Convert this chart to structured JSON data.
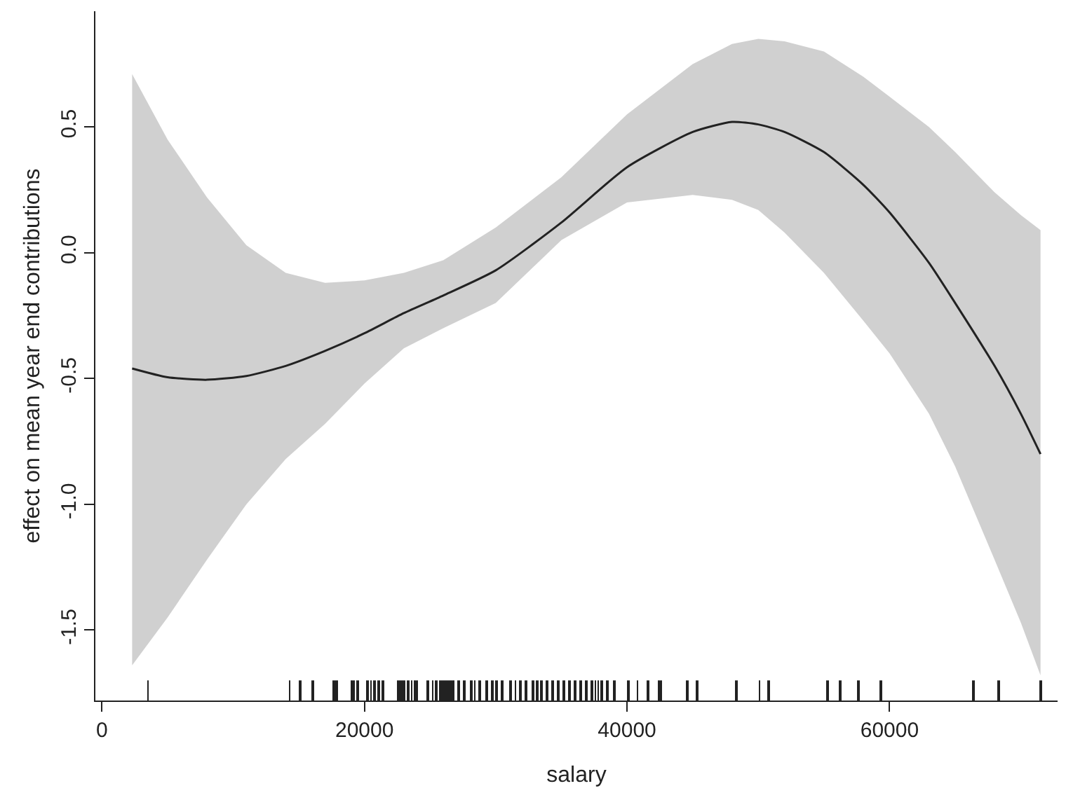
{
  "chart_data": {
    "type": "line",
    "xlabel": "salary",
    "ylabel": "effect on mean year end contributions",
    "xlim": [
      -500,
      72800
    ],
    "ylim": [
      -1.78,
      0.96
    ],
    "xticks": [
      0,
      20000,
      40000,
      60000
    ],
    "yticks": [
      {
        "value": -1.5,
        "label": "-1.5"
      },
      {
        "value": -1,
        "label": "-1.0"
      },
      {
        "value": -0.5,
        "label": "-0.5"
      },
      {
        "value": 0,
        "label": "0.0"
      },
      {
        "value": 0.5,
        "label": "0.5"
      }
    ],
    "grid": false,
    "series": [
      {
        "color": "#222222",
        "x": [
          2300,
          5000,
          8000,
          11000,
          14000,
          17000,
          20000,
          23000,
          26000,
          30000,
          35000,
          40000,
          45000,
          48000,
          50000,
          52000,
          55000,
          58000,
          60000,
          63000,
          65000,
          68000,
          70000,
          71500
        ],
        "values": [
          -0.46,
          -0.495,
          -0.505,
          -0.49,
          -0.45,
          -0.39,
          -0.32,
          -0.24,
          -0.17,
          -0.07,
          0.12,
          0.34,
          0.48,
          0.52,
          0.51,
          0.48,
          0.4,
          0.27,
          0.16,
          -0.04,
          -0.2,
          -0.45,
          -0.64,
          -0.8
        ],
        "lower": [
          -1.64,
          -1.45,
          -1.22,
          -1.0,
          -0.82,
          -0.68,
          -0.52,
          -0.38,
          -0.3,
          -0.2,
          0.05,
          0.2,
          0.23,
          0.21,
          0.17,
          0.08,
          -0.08,
          -0.27,
          -0.4,
          -0.64,
          -0.85,
          -1.22,
          -1.47,
          -1.68
        ],
        "upper": [
          0.71,
          0.45,
          0.22,
          0.03,
          -0.08,
          -0.12,
          -0.11,
          -0.08,
          -0.03,
          0.1,
          0.3,
          0.55,
          0.75,
          0.83,
          0.85,
          0.84,
          0.8,
          0.7,
          0.62,
          0.5,
          0.4,
          0.24,
          0.15,
          0.09
        ]
      },
      {
        "type": "bar",
        "color": "#222222",
        "x": [
          3500,
          14300,
          15100,
          16100,
          17700,
          17900,
          19000,
          19200,
          19500,
          20200,
          20500,
          20800,
          21100,
          21400,
          22600,
          22800,
          23000,
          23300,
          23600,
          23800,
          24000,
          24800,
          25200,
          25500,
          25800,
          26000,
          26200,
          26400,
          26600,
          26800,
          27200,
          27600,
          28100,
          28400,
          28800,
          29300,
          29700,
          30100,
          30500,
          31100,
          31500,
          31900,
          32300,
          32800,
          33200,
          33500,
          33900,
          34300,
          34800,
          35200,
          35600,
          36000,
          36500,
          36900,
          37300,
          37600,
          37800,
          38100,
          38500,
          39000,
          40100,
          40800,
          41600,
          42400,
          42600,
          44600,
          45300,
          48300,
          50100,
          50800,
          55300,
          56200,
          57600,
          59300,
          66400,
          68300,
          71500
        ],
        "values": [
          0.08,
          0.08,
          0.08,
          0.08,
          0.08,
          0.08,
          0.08,
          0.08,
          0.08,
          0.08,
          0.08,
          0.08,
          0.08,
          0.08,
          0.08,
          0.08,
          0.08,
          0.08,
          0.08,
          0.08,
          0.08,
          0.08,
          0.08,
          0.08,
          0.08,
          0.08,
          0.08,
          0.08,
          0.08,
          0.08,
          0.08,
          0.08,
          0.08,
          0.08,
          0.08,
          0.08,
          0.08,
          0.08,
          0.08,
          0.08,
          0.08,
          0.08,
          0.08,
          0.08,
          0.08,
          0.08,
          0.08,
          0.08,
          0.08,
          0.08,
          0.08,
          0.08,
          0.08,
          0.08,
          0.08,
          0.08,
          0.08,
          0.08,
          0.08,
          0.08,
          0.08,
          0.08,
          0.08,
          0.08,
          0.08,
          0.08,
          0.08,
          0.08,
          0.08,
          0.08,
          0.08,
          0.08,
          0.08,
          0.08,
          0.08,
          0.08,
          0.08
        ],
        "base": [
          -1.78,
          -1.78,
          -1.78,
          -1.78,
          -1.78,
          -1.78,
          -1.78,
          -1.78,
          -1.78,
          -1.78,
          -1.78,
          -1.78,
          -1.78,
          -1.78,
          -1.78,
          -1.78,
          -1.78,
          -1.78,
          -1.78,
          -1.78,
          -1.78,
          -1.78,
          -1.78,
          -1.78,
          -1.78,
          -1.78,
          -1.78,
          -1.78,
          -1.78,
          -1.78,
          -1.78,
          -1.78,
          -1.78,
          -1.78,
          -1.78,
          -1.78,
          -1.78,
          -1.78,
          -1.78,
          -1.78,
          -1.78,
          -1.78,
          -1.78,
          -1.78,
          -1.78,
          -1.78,
          -1.78,
          -1.78,
          -1.78,
          -1.78,
          -1.78,
          -1.78,
          -1.78,
          -1.78,
          -1.78,
          -1.78,
          -1.78,
          -1.78,
          -1.78,
          -1.78,
          -1.78,
          -1.78,
          -1.78,
          -1.78,
          -1.78,
          -1.78,
          -1.78,
          -1.78,
          -1.78,
          -1.78,
          -1.78,
          -1.78,
          -1.78,
          -1.78,
          -1.78,
          -1.78,
          -1.78
        ]
      }
    ]
  }
}
